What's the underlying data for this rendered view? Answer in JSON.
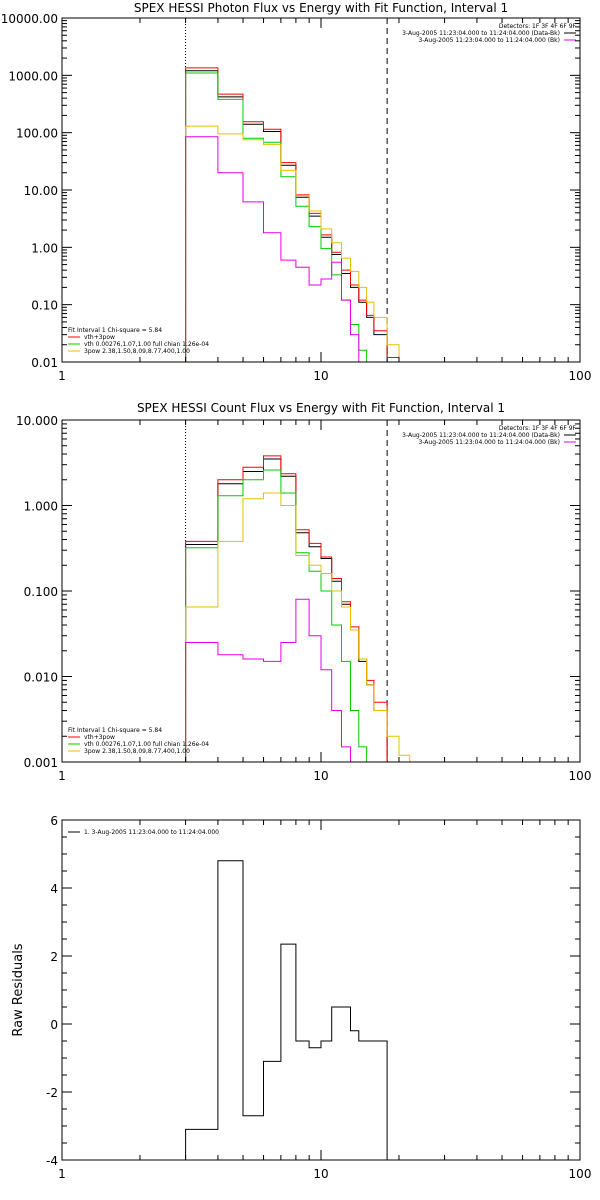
{
  "chart_data": [
    {
      "type": "line",
      "title": "SPEX HESSI Photon Flux vs Energy with Fit Function, Interval 1",
      "xlabel": "",
      "ylabel": "",
      "xscale": "log",
      "yscale": "log",
      "xlim": [
        1,
        100
      ],
      "ylim": [
        0.01,
        10000
      ],
      "xtick_values": [
        1,
        10,
        100
      ],
      "xtick_labels": [
        "1",
        "10",
        "100"
      ],
      "ytick_values": [
        0.01,
        0.1,
        1,
        10,
        100,
        1000,
        10000
      ],
      "ytick_labels": [
        "0.01",
        "0.10",
        "1.00",
        "10.00",
        "100.00",
        "1000.00",
        "10000.00"
      ],
      "vlines": [
        {
          "x": 3.0,
          "style": "dotted"
        },
        {
          "x": 18.0,
          "style": "dashed"
        }
      ],
      "edges": [
        3,
        4,
        5,
        6,
        7,
        8,
        9,
        10,
        11,
        12,
        13,
        14,
        15,
        16,
        18,
        20,
        22
      ],
      "series": [
        {
          "name": "",
          "color": "#000000",
          "values": [
            1200,
            420,
            140,
            105,
            27,
            7.5,
            3.5,
            1.5,
            0.75,
            0.35,
            0.2,
            0.11,
            0.06,
            0.03,
            0.01,
            null
          ]
        },
        {
          "name": "vth+3pow",
          "color": "#ff0000",
          "values": [
            1350,
            470,
            155,
            115,
            30,
            8.2,
            3.9,
            1.65,
            0.82,
            0.4,
            0.22,
            0.12,
            0.065,
            0.035,
            0.012,
            null
          ]
        },
        {
          "name": "vth 0.00276,1.07,1.00 full chian 1.26e-04",
          "color": "#00cc00",
          "values": [
            1100,
            380,
            80,
            68,
            17,
            5.2,
            2.3,
            0.95,
            0.33,
            0.12,
            0.045,
            0.016,
            null,
            null,
            null,
            null
          ]
        },
        {
          "name": "3pow 2.38,1.50,8.09,8.77,400,1.00",
          "color": "#e6c000",
          "values": [
            130,
            95,
            75,
            62,
            22,
            8,
            4.3,
            2.1,
            1.2,
            0.65,
            0.38,
            0.2,
            0.11,
            0.06,
            0.02,
            0.01
          ]
        },
        {
          "name": "",
          "color": "#e600e6",
          "values": [
            85,
            20,
            6.2,
            1.8,
            0.6,
            0.45,
            0.22,
            0.28,
            0.55,
            0.12,
            0.03,
            null,
            null,
            null,
            null,
            null
          ]
        }
      ],
      "legend": {
        "position": "bottom-left",
        "header": "Fit Interval 1    Chi-square = 5.84",
        "entries": [
          {
            "text": "vth+3pow",
            "color": "#ff0000"
          },
          {
            "text": "vth 0.00276,1.07,1.00 full chian 1.26e-04",
            "color": "#00cc00"
          },
          {
            "text": "3pow 2.38,1.50,8.09,8.77,400,1.00",
            "color": "#e6c000"
          }
        ]
      },
      "annotation": {
        "position": "top-right",
        "lines": [
          {
            "text": "Detectors: 1F 3F 4F 6F 9F",
            "color": ""
          },
          {
            "text": "3-Aug-2005 11:23:04.000 to 11:24:04.000 (Data-Bk)",
            "color": "#000000"
          },
          {
            "text": "3-Aug-2005 11:23:04.000 to 11:24:04.000 (Bk)",
            "color": "#e600e6"
          }
        ]
      }
    },
    {
      "type": "line",
      "title": "SPEX HESSI Count Flux vs Energy with Fit Function, Interval 1",
      "xlabel": "",
      "ylabel": "",
      "xscale": "log",
      "yscale": "log",
      "xlim": [
        1,
        100
      ],
      "ylim": [
        0.001,
        10
      ],
      "xtick_values": [
        1,
        10,
        100
      ],
      "xtick_labels": [
        "1",
        "10",
        "100"
      ],
      "ytick_values": [
        0.001,
        0.01,
        0.1,
        1,
        10
      ],
      "ytick_labels": [
        "0.001",
        "0.010",
        "0.100",
        "1.000",
        "10.000"
      ],
      "vlines": [
        {
          "x": 3.0,
          "style": "dotted"
        },
        {
          "x": 18.0,
          "style": "dashed"
        }
      ],
      "edges": [
        3,
        4,
        5,
        6,
        7,
        8,
        9,
        10,
        11,
        12,
        13,
        14,
        15,
        16,
        18,
        20,
        22
      ],
      "series": [
        {
          "name": "",
          "color": "#000000",
          "values": [
            0.35,
            1.8,
            2.5,
            3.5,
            2.2,
            0.48,
            0.33,
            0.24,
            0.13,
            0.07,
            0.035,
            0.015,
            0.008,
            0.004,
            null,
            null
          ]
        },
        {
          "name": "vth+3pow",
          "color": "#ff0000",
          "values": [
            0.38,
            2.0,
            2.8,
            3.8,
            2.35,
            0.52,
            0.36,
            0.25,
            0.14,
            0.075,
            0.038,
            0.016,
            0.009,
            0.005,
            null,
            null
          ]
        },
        {
          "name": "vth 0.00276,1.07,1.00 full chian 1.26e-04",
          "color": "#00cc00",
          "values": [
            0.32,
            1.3,
            2.0,
            2.6,
            1.4,
            0.28,
            0.17,
            0.1,
            0.04,
            0.015,
            0.004,
            0.0015,
            null,
            null,
            null,
            null
          ]
        },
        {
          "name": "3pow 2.38,1.50,8.09,8.77,400,1.00",
          "color": "#e6c000",
          "values": [
            0.065,
            0.38,
            1.2,
            1.4,
            1.0,
            0.26,
            0.2,
            0.16,
            0.1,
            0.065,
            0.035,
            0.016,
            0.008,
            0.004,
            0.002,
            0.0012
          ]
        },
        {
          "name": "",
          "color": "#e600e6",
          "values": [
            0.025,
            0.018,
            0.016,
            0.015,
            0.025,
            0.08,
            0.03,
            0.012,
            0.004,
            0.0015,
            null,
            null,
            null,
            null,
            null,
            null
          ]
        }
      ],
      "legend": {
        "position": "bottom-left",
        "header": "Fit Interval 1    Chi-square = 5.84",
        "entries": [
          {
            "text": "vth+3pow",
            "color": "#ff0000"
          },
          {
            "text": "vth 0.00276,1.07,1.00 full chian 1.26e-04",
            "color": "#00cc00"
          },
          {
            "text": "3pow 2.38,1.50,8.09,8.77,400,1.00",
            "color": "#e6c000"
          }
        ]
      },
      "annotation": {
        "position": "top-right",
        "lines": [
          {
            "text": "Detectors: 1F 3F 4F 6F 9F",
            "color": ""
          },
          {
            "text": "3-Aug-2005 11:23:04.000 to 11:24:04.000 (Data-Bk)",
            "color": "#000000"
          },
          {
            "text": "3-Aug-2005 11:23:04.000 to 11:24:04.000 (Bk)",
            "color": "#e600e6"
          }
        ]
      }
    },
    {
      "type": "line",
      "title": "",
      "xlabel": "",
      "ylabel": "Raw Residuals",
      "xscale": "log",
      "yscale": "linear",
      "xlim": [
        1,
        100
      ],
      "ylim": [
        -4,
        6
      ],
      "xtick_values": [
        1,
        10,
        100
      ],
      "xtick_labels": [
        "1",
        "10",
        "100"
      ],
      "ytick_values": [
        -4,
        -2,
        0,
        2,
        4,
        6
      ],
      "ytick_labels": [
        "-4",
        "-2",
        "0",
        "2",
        "4",
        "6"
      ],
      "vlines": [],
      "edges": [
        3,
        4,
        5,
        6,
        7,
        8,
        9,
        10,
        11,
        12,
        13,
        14,
        15,
        16,
        18,
        20,
        22
      ],
      "series": [
        {
          "name": "",
          "color": "#000000",
          "values": [
            -3.1,
            4.8,
            -2.7,
            -1.1,
            2.35,
            -0.5,
            -0.7,
            -0.5,
            0.5,
            0.5,
            -0.2,
            -0.5,
            -0.5,
            -0.5,
            null,
            null
          ]
        }
      ],
      "legend": {
        "position": "top-left",
        "header": "",
        "entries": [
          {
            "text": "1.  3-Aug-2005 11:23:04.000 to 11:24:04.000",
            "color": "#000000"
          }
        ]
      },
      "annotation": {
        "position": "top-right",
        "lines": []
      }
    }
  ]
}
